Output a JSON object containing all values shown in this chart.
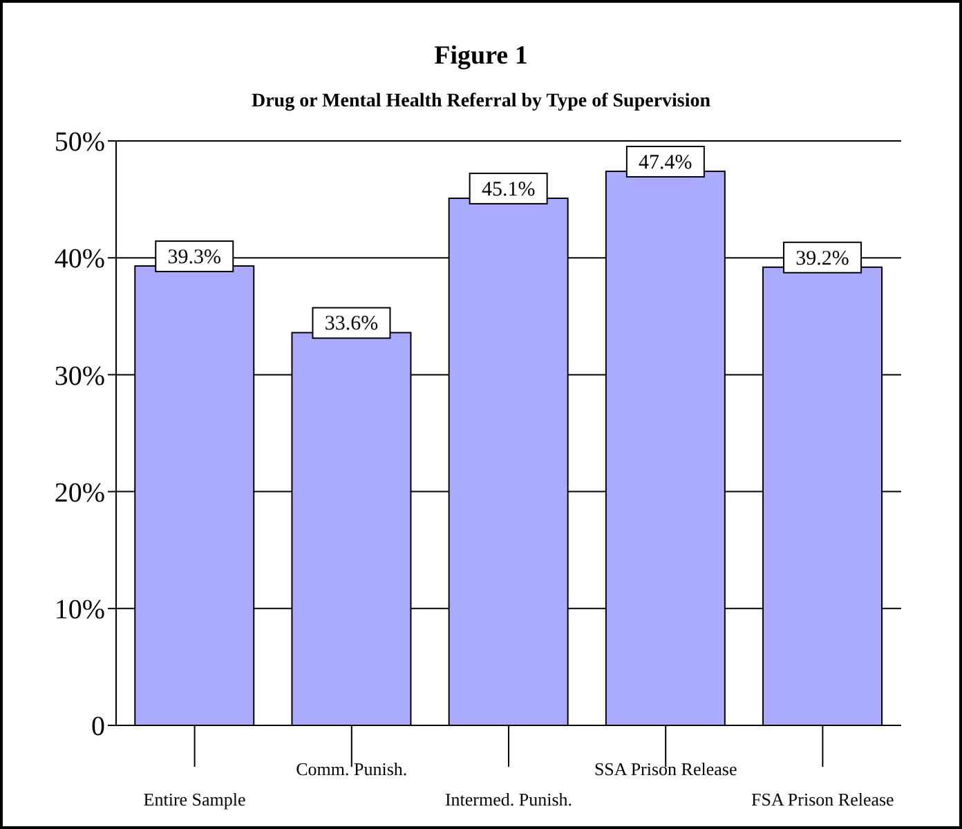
{
  "chart_data": {
    "type": "bar",
    "title": "Figure 1",
    "subtitle": "Drug or Mental Health Referral by Type of Supervision",
    "categories": [
      "Entire Sample",
      "Comm. Punish.",
      "Intermed. Punish.",
      "SSA Prison Release",
      "FSA Prison Release"
    ],
    "values": [
      39.3,
      33.6,
      45.1,
      47.4,
      39.2
    ],
    "value_labels": [
      "39.3%",
      "33.6%",
      "45.1%",
      "47.4%",
      "39.2%"
    ],
    "color": "#aaaaff",
    "ylim": [
      0,
      50
    ],
    "yticks": [
      {
        "value": 0,
        "label": "0"
      },
      {
        "value": 10,
        "label": "10%"
      },
      {
        "value": 20,
        "label": "20%"
      },
      {
        "value": 30,
        "label": "30%"
      },
      {
        "value": 40,
        "label": "40%"
      },
      {
        "value": 50,
        "label": "50%"
      }
    ],
    "grid": "y",
    "legend": false
  }
}
